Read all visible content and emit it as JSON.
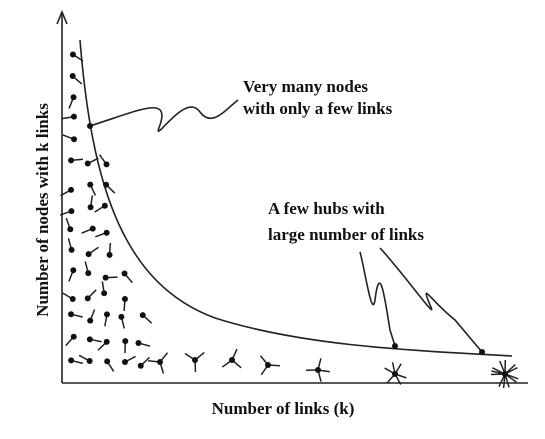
{
  "axes": {
    "y_label": "Number of nodes with k links",
    "x_label": "Number of links (k)"
  },
  "annotations": [
    {
      "lines": [
        "Very many nodes",
        "with only a few links"
      ]
    },
    {
      "lines": [
        "A few hubs with",
        "large number of links"
      ]
    }
  ]
}
